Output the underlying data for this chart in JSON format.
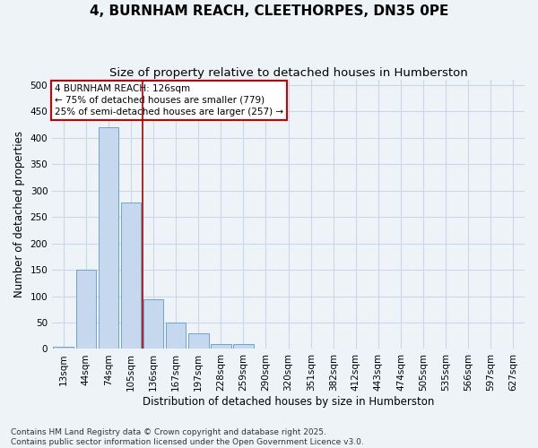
{
  "title": "4, BURNHAM REACH, CLEETHORPES, DN35 0PE",
  "subtitle": "Size of property relative to detached houses in Humberston",
  "xlabel": "Distribution of detached houses by size in Humberston",
  "ylabel": "Number of detached properties",
  "categories": [
    "13sqm",
    "44sqm",
    "74sqm",
    "105sqm",
    "136sqm",
    "167sqm",
    "197sqm",
    "228sqm",
    "259sqm",
    "290sqm",
    "320sqm",
    "351sqm",
    "382sqm",
    "412sqm",
    "443sqm",
    "474sqm",
    "505sqm",
    "535sqm",
    "566sqm",
    "597sqm",
    "627sqm"
  ],
  "values": [
    5,
    150,
    420,
    278,
    95,
    50,
    30,
    9,
    9,
    0,
    0,
    0,
    0,
    0,
    0,
    0,
    0,
    0,
    0,
    0,
    0
  ],
  "bar_color": "#c5d8ed",
  "bar_edge_color": "#6ea3cc",
  "grid_color": "#c8d8e8",
  "bg_color": "#eef3f8",
  "annotation_line1": "4 BURNHAM REACH: 126sqm",
  "annotation_line2": "← 75% of detached houses are smaller (779)",
  "annotation_line3": "25% of semi-detached houses are larger (257) →",
  "annotation_box_color": "#cc0000",
  "vline_x_index": 3.5,
  "vline_color": "#aa0000",
  "ylim": [
    0,
    510
  ],
  "yticks": [
    0,
    50,
    100,
    150,
    200,
    250,
    300,
    350,
    400,
    450,
    500
  ],
  "footer": "Contains HM Land Registry data © Crown copyright and database right 2025.\nContains public sector information licensed under the Open Government Licence v3.0.",
  "title_fontsize": 11,
  "subtitle_fontsize": 9.5,
  "axis_label_fontsize": 8.5,
  "tick_fontsize": 7.5,
  "annotation_fontsize": 7.5,
  "footer_fontsize": 6.5
}
